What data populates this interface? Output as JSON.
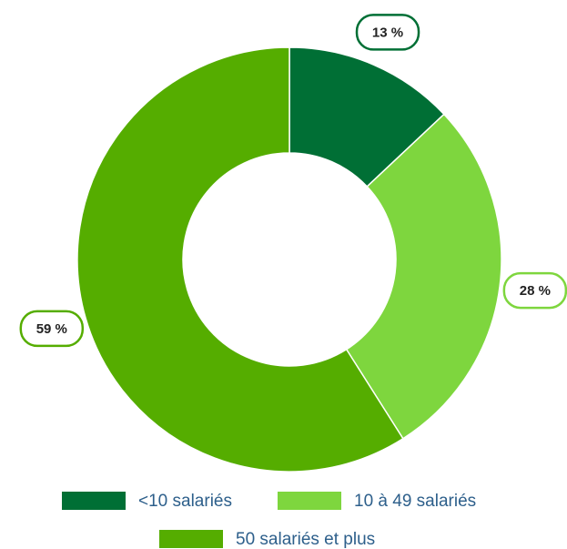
{
  "chart_data": {
    "type": "donut",
    "categories": [
      "<10 salariés",
      "10 à 49 salariés",
      "50 salariés et plus"
    ],
    "values": [
      13,
      28,
      59
    ],
    "value_labels": [
      "13 %",
      "28 %",
      "59 %"
    ],
    "colors": [
      "#006f35",
      "#7ed63e",
      "#55ad00"
    ],
    "legend": "bottom"
  }
}
